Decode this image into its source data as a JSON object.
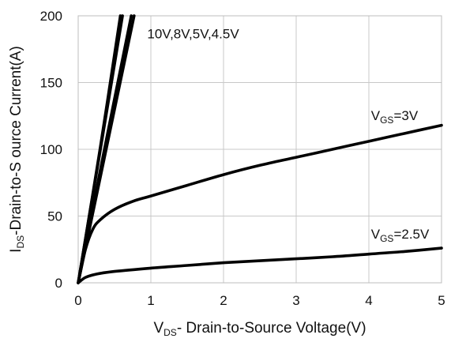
{
  "chart_data": {
    "type": "line",
    "title": "",
    "xlabel": {
      "main": "V",
      "sub": "DS",
      "rest": "- Drain-to-Source Voltage(V)"
    },
    "ylabel": {
      "main": "I",
      "sub": "DS",
      "rest": "-Drain-to-S ource Current(A)"
    },
    "xlim": [
      0,
      5
    ],
    "ylim": [
      0,
      200
    ],
    "xticks": [
      "0",
      "1",
      "2",
      "3",
      "4",
      "5"
    ],
    "yticks": [
      "0",
      "50",
      "100",
      "150",
      "200"
    ],
    "grid": true,
    "series": [
      {
        "id": "vgs-10v",
        "x": [
          0,
          0.3,
          0.58
        ],
        "y": [
          0,
          100,
          200
        ]
      },
      {
        "id": "vgs-8v",
        "x": [
          0,
          0.3,
          0.61
        ],
        "y": [
          0,
          98,
          200
        ]
      },
      {
        "id": "vgs-5v",
        "x": [
          0,
          0.35,
          0.73
        ],
        "y": [
          0,
          97,
          200
        ]
      },
      {
        "id": "vgs-4.5v",
        "x": [
          0,
          0.37,
          0.77
        ],
        "y": [
          0,
          96,
          200
        ]
      },
      {
        "id": "vgs-3v",
        "x": [
          0,
          0.1,
          0.2,
          0.3,
          0.5,
          0.75,
          1.0,
          1.5,
          2.0,
          2.5,
          3.0,
          3.5,
          4.0,
          4.5,
          5.0
        ],
        "y": [
          0,
          25,
          40,
          47,
          55,
          61,
          65,
          73,
          81,
          88,
          94,
          100,
          106,
          112,
          118
        ]
      },
      {
        "id": "vgs-2.5v",
        "x": [
          0,
          0.1,
          0.25,
          0.5,
          1.0,
          1.5,
          2.0,
          2.5,
          3.0,
          3.5,
          4.0,
          4.5,
          5.0
        ],
        "y": [
          0,
          4,
          6.5,
          8.5,
          11,
          13,
          15,
          16.5,
          18,
          19.5,
          21.5,
          23.5,
          26
        ]
      }
    ],
    "annotations": [
      {
        "id": "ann-high",
        "text": "10V,8V,5V,4.5V",
        "x": 0.95,
        "y": 183
      },
      {
        "id": "ann-3v",
        "main": "V",
        "sub": "GS",
        "rest": "=3V",
        "x": 4.03,
        "y": 122
      },
      {
        "id": "ann-2.5v",
        "main": "V",
        "sub": "GS",
        "rest": "=2.5V",
        "x": 4.03,
        "y": 33
      }
    ]
  }
}
